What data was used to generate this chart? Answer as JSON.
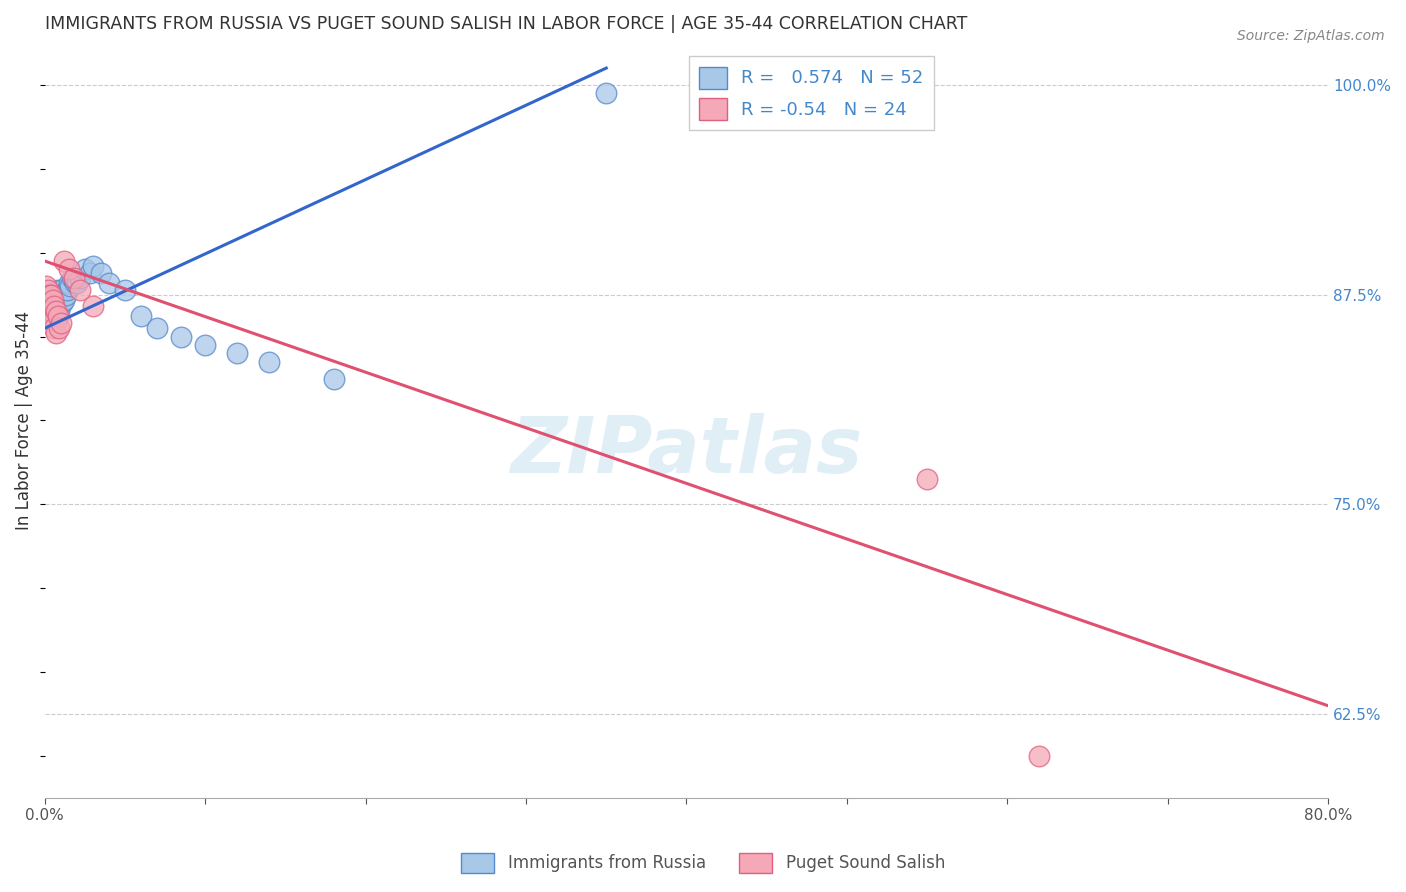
{
  "title": "IMMIGRANTS FROM RUSSIA VS PUGET SOUND SALISH IN LABOR FORCE | AGE 35-44 CORRELATION CHART",
  "source": "Source: ZipAtlas.com",
  "ylabel": "In Labor Force | Age 35-44",
  "xmin": 0.0,
  "xmax": 0.8,
  "ymin": 0.575,
  "ymax": 1.025,
  "yticks": [
    0.625,
    0.75,
    0.875,
    1.0
  ],
  "yticklabels": [
    "62.5%",
    "75.0%",
    "87.5%",
    "100.0%"
  ],
  "blue_R": 0.574,
  "blue_N": 52,
  "pink_R": -0.54,
  "pink_N": 24,
  "blue_color": "#a8c8e8",
  "pink_color": "#f4a8b8",
  "blue_edge_color": "#5588cc",
  "pink_edge_color": "#e06080",
  "blue_line_color": "#3366cc",
  "pink_line_color": "#e05070",
  "legend_label_blue": "Immigrants from Russia",
  "legend_label_pink": "Puget Sound Salish",
  "watermark": "ZIPatlas",
  "blue_trend_x": [
    0.0,
    0.35
  ],
  "blue_trend_y": [
    0.855,
    1.01
  ],
  "pink_trend_x": [
    0.0,
    0.8
  ],
  "pink_trend_y": [
    0.895,
    0.63
  ],
  "blue_x": [
    0.001,
    0.002,
    0.002,
    0.003,
    0.003,
    0.003,
    0.004,
    0.004,
    0.004,
    0.005,
    0.005,
    0.005,
    0.005,
    0.006,
    0.006,
    0.006,
    0.007,
    0.007,
    0.007,
    0.007,
    0.008,
    0.008,
    0.009,
    0.009,
    0.01,
    0.01,
    0.01,
    0.011,
    0.012,
    0.013,
    0.014,
    0.015,
    0.016,
    0.017,
    0.018,
    0.019,
    0.02,
    0.022,
    0.025,
    0.028,
    0.03,
    0.035,
    0.04,
    0.05,
    0.06,
    0.07,
    0.085,
    0.1,
    0.12,
    0.14,
    0.18,
    0.35
  ],
  "blue_y": [
    0.875,
    0.875,
    0.87,
    0.875,
    0.872,
    0.868,
    0.876,
    0.872,
    0.868,
    0.875,
    0.872,
    0.868,
    0.864,
    0.875,
    0.87,
    0.865,
    0.875,
    0.87,
    0.865,
    0.86,
    0.878,
    0.872,
    0.87,
    0.865,
    0.878,
    0.875,
    0.87,
    0.87,
    0.872,
    0.875,
    0.878,
    0.882,
    0.88,
    0.885,
    0.884,
    0.882,
    0.882,
    0.885,
    0.89,
    0.888,
    0.892,
    0.888,
    0.882,
    0.878,
    0.862,
    0.855,
    0.85,
    0.845,
    0.84,
    0.835,
    0.825,
    0.995
  ],
  "pink_x": [
    0.001,
    0.001,
    0.002,
    0.002,
    0.003,
    0.003,
    0.004,
    0.004,
    0.005,
    0.005,
    0.006,
    0.006,
    0.007,
    0.007,
    0.008,
    0.009,
    0.01,
    0.012,
    0.015,
    0.018,
    0.022,
    0.03,
    0.55,
    0.62
  ],
  "pink_y": [
    0.88,
    0.875,
    0.878,
    0.87,
    0.875,
    0.868,
    0.875,
    0.865,
    0.872,
    0.86,
    0.868,
    0.855,
    0.865,
    0.852,
    0.862,
    0.855,
    0.858,
    0.895,
    0.89,
    0.885,
    0.878,
    0.868,
    0.765,
    0.6
  ]
}
